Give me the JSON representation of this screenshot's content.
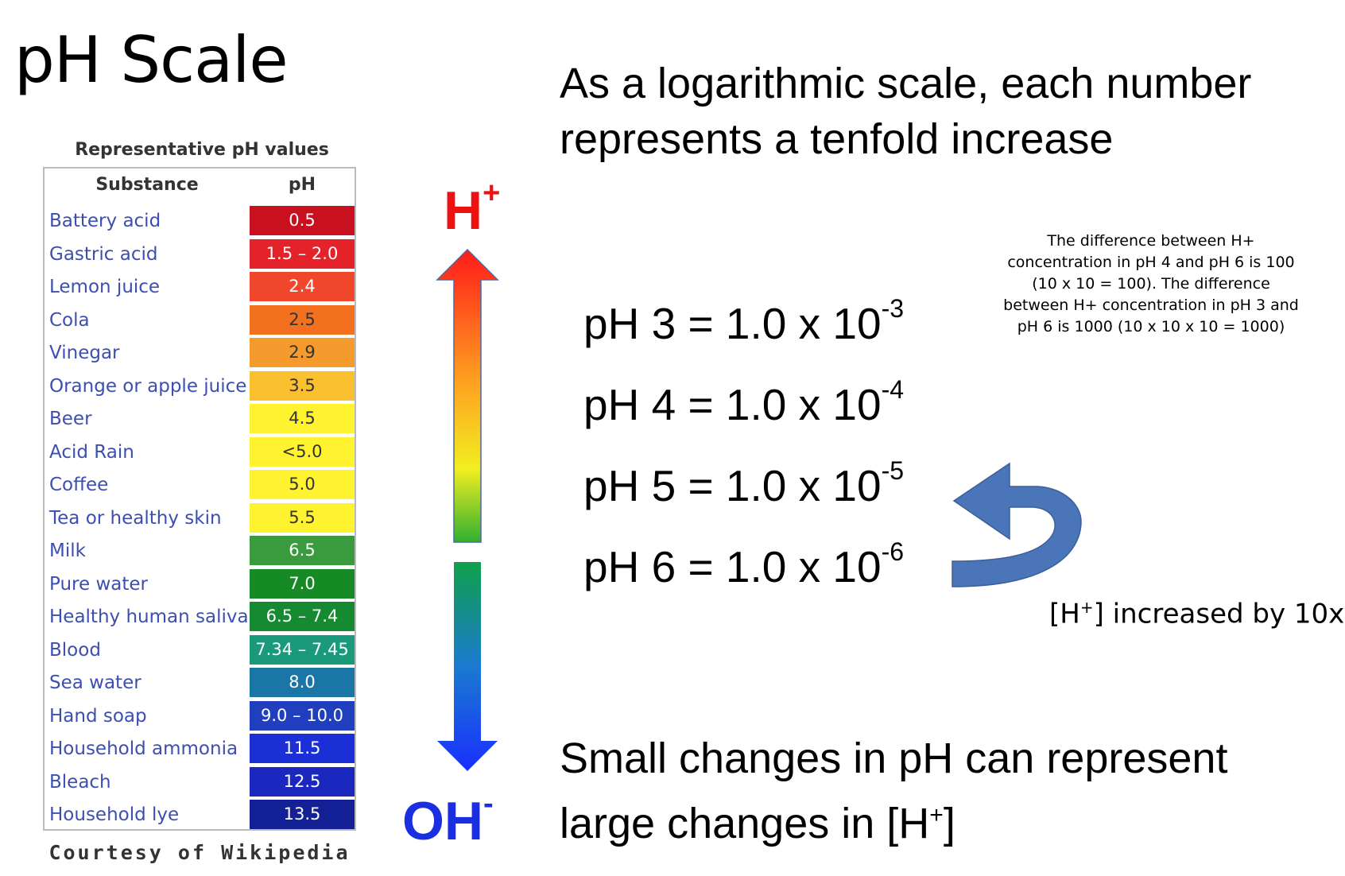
{
  "title": "pH Scale",
  "table": {
    "caption": "Representative pH values",
    "header_substance": "Substance",
    "header_ph": "pH",
    "credit": "Courtesy of Wikipedia",
    "rows": [
      {
        "substance": "Battery acid",
        "ph": "0.5",
        "color": "#c8101f",
        "text": "#ffffff"
      },
      {
        "substance": "Gastric acid",
        "ph": "1.5 – 2.0",
        "color": "#e4222a",
        "text": "#ffffff"
      },
      {
        "substance": "Lemon juice",
        "ph": "2.4",
        "color": "#f0472c",
        "text": "#ffffff"
      },
      {
        "substance": "Cola",
        "ph": "2.5",
        "color": "#f3701f",
        "text": "#333333"
      },
      {
        "substance": "Vinegar",
        "ph": "2.9",
        "color": "#f59a2c",
        "text": "#333333"
      },
      {
        "substance": "Orange or apple juice",
        "ph": "3.5",
        "color": "#fbc030",
        "text": "#333333"
      },
      {
        "substance": "Beer",
        "ph": "4.5",
        "color": "#fff22e",
        "text": "#333333"
      },
      {
        "substance": "Acid Rain",
        "ph": "<5.0",
        "color": "#fff22e",
        "text": "#333333"
      },
      {
        "substance": "Coffee",
        "ph": "5.0",
        "color": "#fff22e",
        "text": "#333333"
      },
      {
        "substance": "Tea or healthy skin",
        "ph": "5.5",
        "color": "#fff22e",
        "text": "#333333"
      },
      {
        "substance": "Milk",
        "ph": "6.5",
        "color": "#3a9a3e",
        "text": "#ffffff"
      },
      {
        "substance": "Pure water",
        "ph": "7.0",
        "color": "#168a24",
        "text": "#ffffff"
      },
      {
        "substance": "Healthy human saliva",
        "ph": "6.5 – 7.4",
        "color": "#158a30",
        "text": "#ffffff"
      },
      {
        "substance": "Blood",
        "ph": "7.34 – 7.45",
        "color": "#1a9a7a",
        "text": "#ffffff"
      },
      {
        "substance": "Sea water",
        "ph": "8.0",
        "color": "#1b76a8",
        "text": "#ffffff"
      },
      {
        "substance": "Hand soap",
        "ph": "9.0 – 10.0",
        "color": "#1f3fbf",
        "text": "#ffffff"
      },
      {
        "substance": "Household ammonia",
        "ph": "11.5",
        "color": "#1a2fd6",
        "text": "#ffffff"
      },
      {
        "substance": "Bleach",
        "ph": "12.5",
        "color": "#1a28c0",
        "text": "#ffffff"
      },
      {
        "substance": "Household lye",
        "ph": "13.5",
        "color": "#142096",
        "text": "#ffffff"
      }
    ]
  },
  "arrows": {
    "h_label": "H",
    "h_sup": "+",
    "oh_label": "OH",
    "oh_sup": "-"
  },
  "headline": "As a logarithmic scale, each number represents a tenfold increase",
  "note": "The difference between H+ concentration in pH 4 and pH 6 is 100 (10 x 10 = 100). The difference between H+ concentration in pH 3 and pH 6 is 1000 (10 x 10 x 10 = 1000)",
  "equations": [
    {
      "left": "pH 3 = 1.0 x 10",
      "exp": "-3"
    },
    {
      "left": "pH 4 = 1.0 x 10",
      "exp": "-4"
    },
    {
      "left": "pH 5 = 1.0 x 10",
      "exp": "-5"
    },
    {
      "left": "pH 6 = 1.0 x 10",
      "exp": "-6"
    }
  ],
  "curve_label": {
    "pre": "[H",
    "sup": "+",
    "post": "] increased by 10x"
  },
  "bottom": {
    "line1": "Small changes in pH can represent",
    "line2_pre": "large changes in [H",
    "line2_sup": "+",
    "line2_post": "]"
  },
  "colors": {
    "h": "#ee1111",
    "oh": "#1a2fe0",
    "curve_arrow": "#4a75b8"
  }
}
